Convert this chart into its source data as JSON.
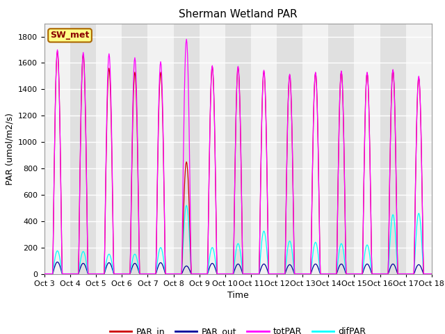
{
  "title": "Sherman Wetland PAR",
  "xlabel": "Time",
  "ylabel": "PAR (umol/m2/s)",
  "ylim": [
    0,
    1900
  ],
  "yticks": [
    0,
    200,
    400,
    600,
    800,
    1000,
    1200,
    1400,
    1600,
    1800
  ],
  "start_day": 3,
  "end_day": 18,
  "n_days": 15,
  "hours_per_day": 24,
  "dt_hours": 0.5,
  "totpar_peaks": [
    1700,
    1680,
    1670,
    1640,
    1610,
    1780,
    1580,
    1575,
    1545,
    1515,
    1530,
    1540,
    1530,
    1550,
    1500
  ],
  "par_in_peaks": [
    1690,
    1665,
    1560,
    1530,
    1530,
    850,
    1575,
    1570,
    1540,
    1510,
    1525,
    1535,
    1525,
    1545,
    1490
  ],
  "par_out_peaks": [
    90,
    80,
    85,
    80,
    85,
    60,
    80,
    75,
    75,
    70,
    75,
    75,
    75,
    75,
    70
  ],
  "difpar_peaks": [
    175,
    170,
    150,
    150,
    200,
    520,
    200,
    230,
    325,
    250,
    240,
    230,
    220,
    450,
    460
  ],
  "colors": {
    "par_in": "#cc0000",
    "par_out": "#000099",
    "totpar": "#ff00ff",
    "difpar": "#00ffff"
  },
  "legend_label": "SW_met",
  "band_colors": [
    "#f2f2f2",
    "#e0e0e0"
  ],
  "title_fontsize": 11,
  "axis_fontsize": 9,
  "tick_fontsize": 8,
  "legend_fontsize": 9
}
